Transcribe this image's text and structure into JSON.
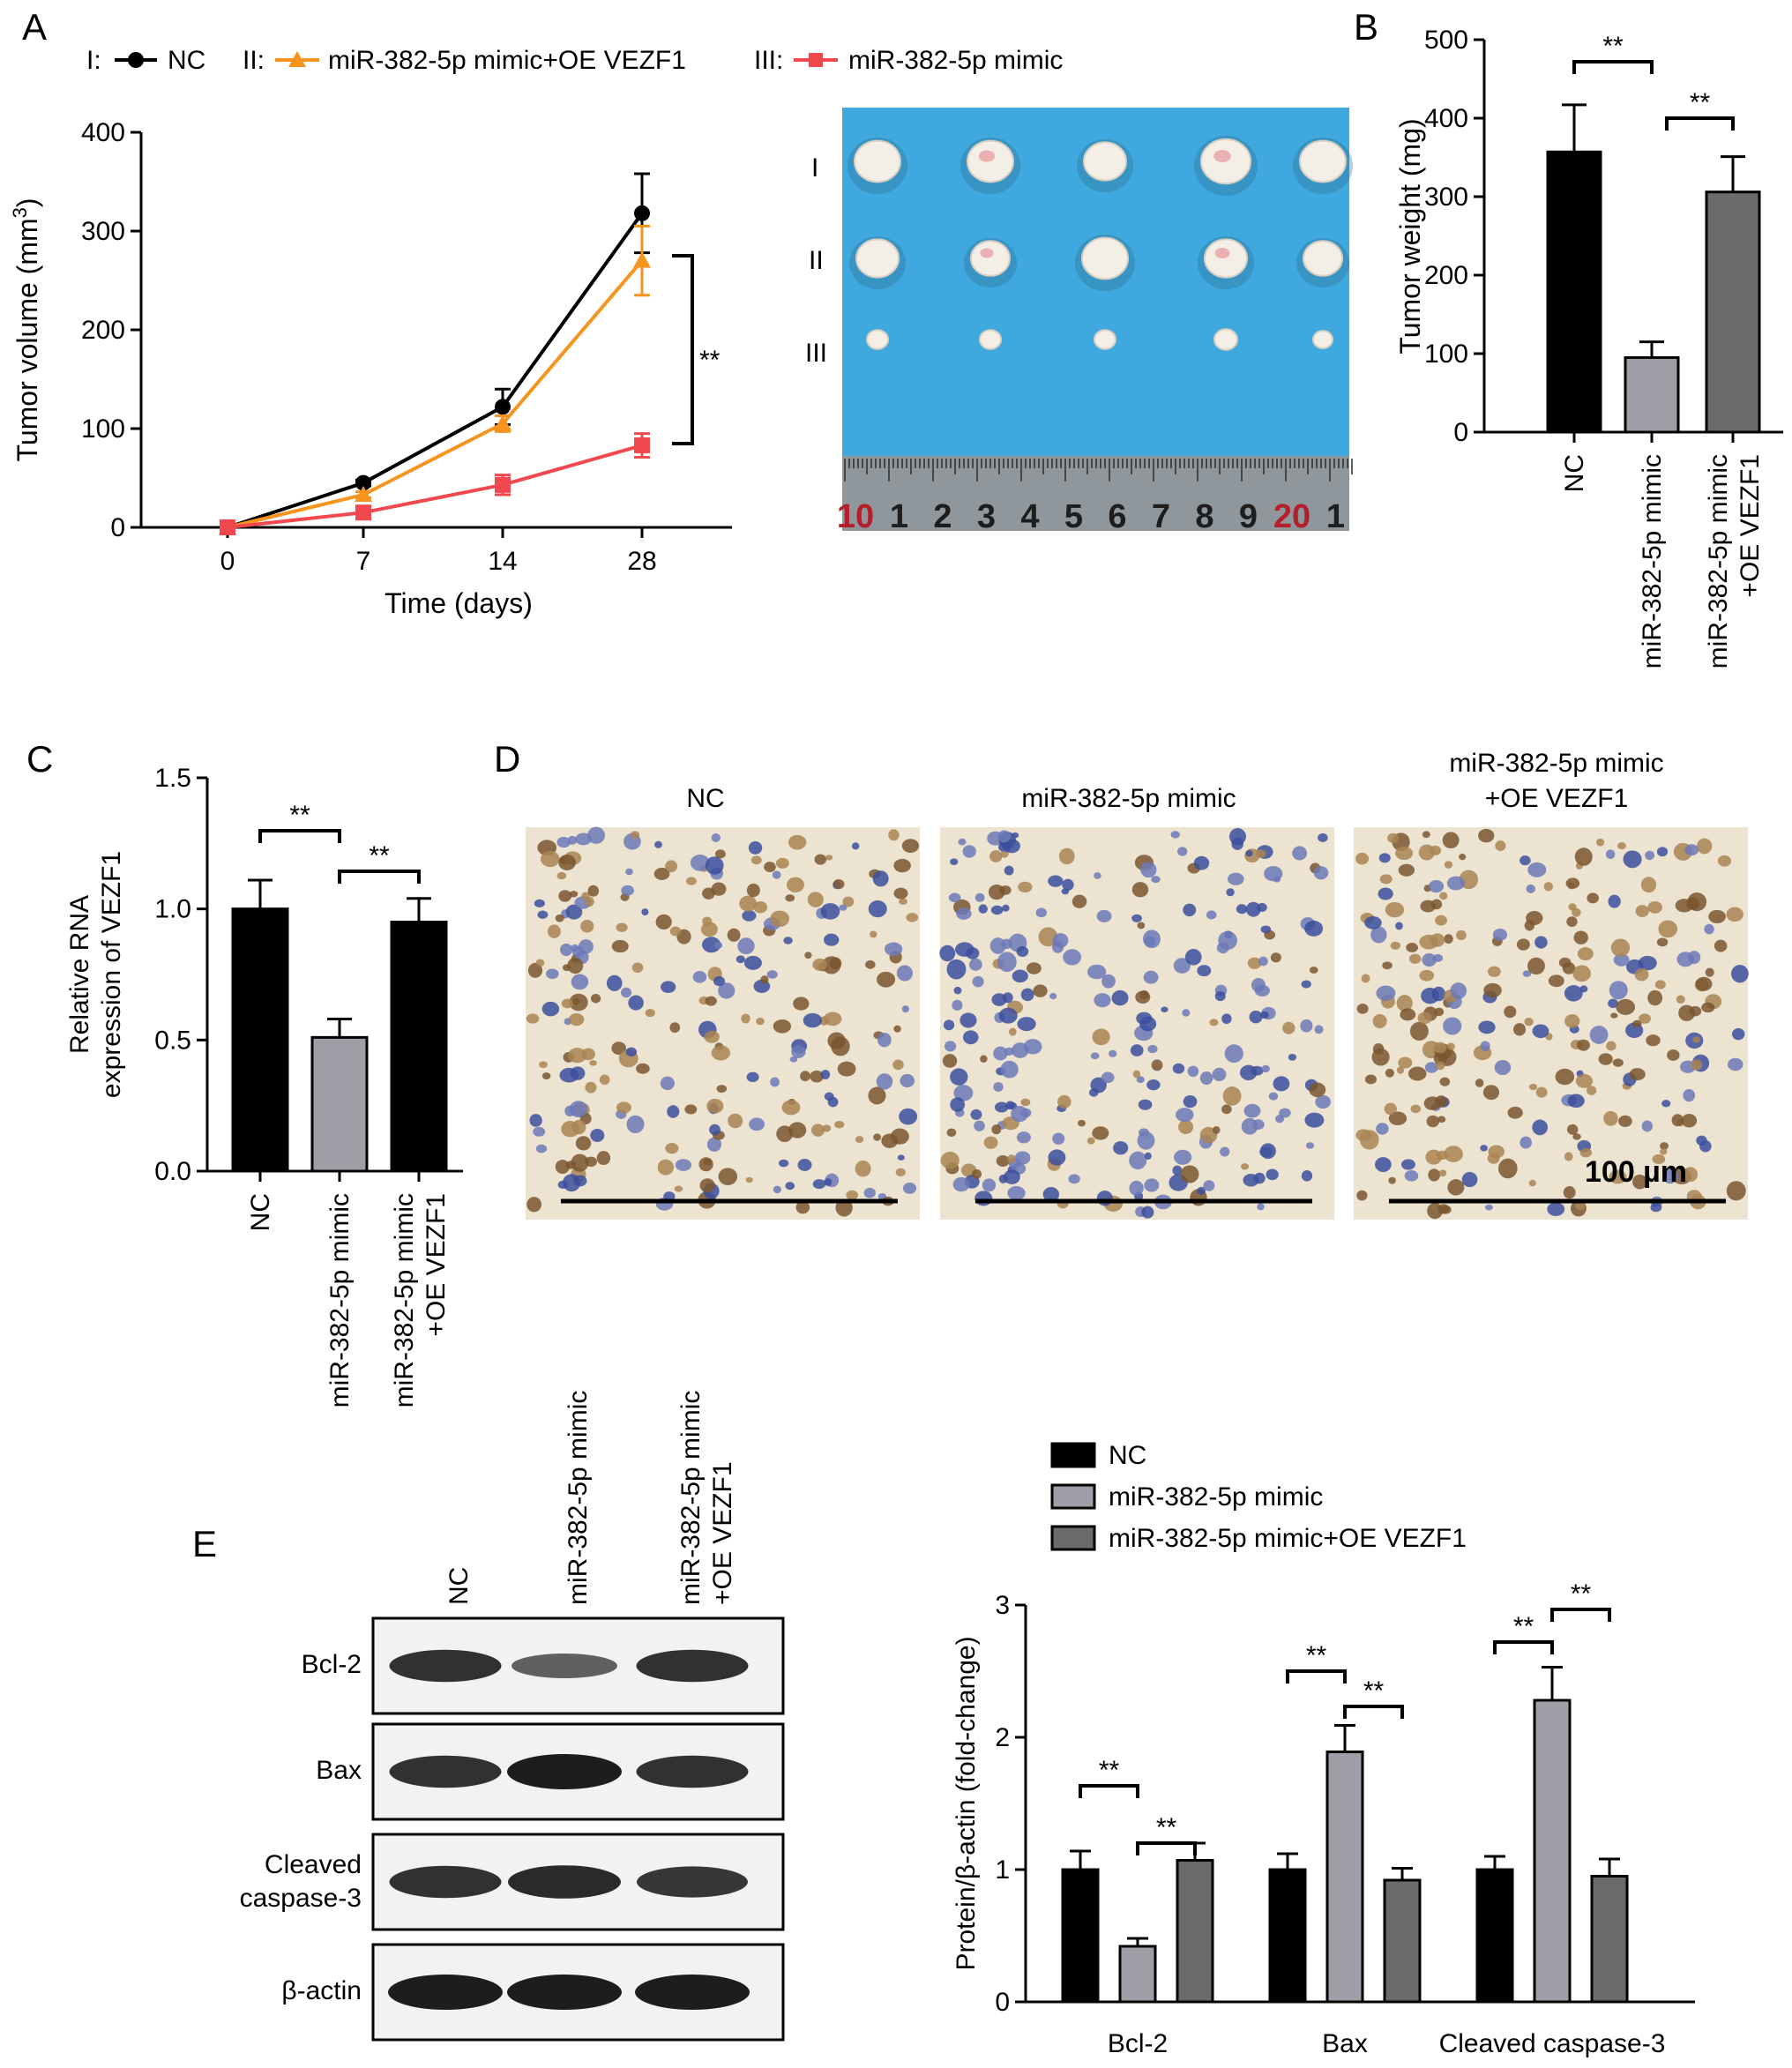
{
  "panels": {
    "A": {
      "letter": "A",
      "legend": [
        {
          "roman": "I:",
          "label": "NC",
          "color": "#000000",
          "marker": "circle"
        },
        {
          "roman": "II:",
          "label": "miR-382-5p mimic+OE VEZF1",
          "color": "#f7941d",
          "marker": "triangle"
        },
        {
          "roman": "III:",
          "label": "miR-382-5p mimic",
          "color": "#f0484e",
          "marker": "square"
        }
      ],
      "sig_label": "**",
      "photo_rows": [
        "I",
        "II",
        "III"
      ],
      "ruler_labels": [
        "10",
        "1",
        "2",
        "3",
        "4",
        "5",
        "6",
        "7",
        "8",
        "9",
        "20",
        "1"
      ]
    },
    "B": {
      "letter": "B"
    },
    "C": {
      "letter": "C"
    },
    "D": {
      "letter": "D",
      "headers": [
        "NC",
        "miR-382-5p mimic",
        "miR-382-5p mimic\n+OE VEZF1"
      ],
      "scale_label": "100 µm",
      "colors": {
        "background": "#ece3d0",
        "brown_nucleus": "#7a5630",
        "blue_nucleus": "#3c4f9e"
      }
    },
    "E": {
      "letter": "E",
      "lanes": [
        "NC",
        "miR-382-5p mimic",
        "miR-382-5p mimic\n+OE VEZF1"
      ],
      "blots": [
        {
          "label": "Bcl-2",
          "intensities": [
            0.85,
            0.5,
            0.85
          ]
        },
        {
          "label": "Bax",
          "intensities": [
            0.85,
            1.0,
            0.85
          ]
        },
        {
          "label": "Cleaved\ncaspase-3",
          "intensities": [
            0.85,
            0.9,
            0.8
          ]
        },
        {
          "label": "β-actin",
          "intensities": [
            1.0,
            1.0,
            1.0
          ]
        }
      ]
    }
  },
  "chart_data": [
    {
      "id": "A",
      "type": "line",
      "xlabel": "Time (days)",
      "ylabel": "Tumor volume (mm3)",
      "x": [
        0,
        7,
        14,
        28
      ],
      "xticks": [
        "0",
        "7",
        "14",
        "28"
      ],
      "ylim": [
        0,
        400
      ],
      "yticks": [
        0,
        100,
        200,
        300,
        400
      ],
      "series": [
        {
          "name": "NC",
          "color": "#000000",
          "marker": "circle",
          "values": [
            0,
            45,
            122,
            318
          ],
          "errors": [
            0,
            3,
            18,
            40
          ]
        },
        {
          "name": "miR-382-5p mimic+OE VEZF1",
          "color": "#f7941d",
          "marker": "triangle",
          "values": [
            0,
            33,
            105,
            270
          ],
          "errors": [
            0,
            3,
            8,
            35
          ]
        },
        {
          "name": "miR-382-5p mimic",
          "color": "#f0484e",
          "marker": "square",
          "values": [
            0,
            15,
            43,
            83
          ],
          "errors": [
            0,
            4,
            10,
            12
          ]
        }
      ],
      "annotations": [
        "**"
      ]
    },
    {
      "id": "B",
      "type": "bar",
      "ylabel": "Tumor weight (mg)",
      "categories": [
        "NC",
        "miR-382-5p mimic",
        "miR-382-5p mimic\n+OE VEZF1"
      ],
      "values": [
        357,
        95,
        306
      ],
      "errors": [
        60,
        20,
        45
      ],
      "colors": [
        "#000000",
        "#9e9fa6",
        "#6b6b6b"
      ],
      "ylim": [
        0,
        500
      ],
      "yticks": [
        0,
        100,
        200,
        300,
        400,
        500
      ],
      "annotations": [
        "**",
        "**"
      ]
    },
    {
      "id": "C",
      "type": "bar",
      "ylabel": "Relative RNA\nexpression of VEZF1",
      "categories": [
        "NC",
        "miR-382-5p mimic",
        "miR-382-5p mimic\n+OE VEZF1"
      ],
      "values": [
        1.0,
        0.51,
        0.95
      ],
      "errors": [
        0.11,
        0.07,
        0.09
      ],
      "colors": [
        "#000000",
        "#9e9fa6",
        "#000000"
      ],
      "ylim": [
        0,
        1.5
      ],
      "yticks": [
        "0.0",
        "0.5",
        "1.0",
        "1.5"
      ],
      "annotations": [
        "**",
        "**"
      ]
    },
    {
      "id": "E",
      "type": "bar",
      "ylabel": "Protein/β-actin (fold-change)",
      "categories": [
        "Bcl-2",
        "Bax",
        "Cleaved caspase-3"
      ],
      "series": [
        {
          "name": "NC",
          "color": "#000000",
          "values": [
            1.0,
            1.0,
            1.0
          ],
          "errors": [
            0.14,
            0.12,
            0.1
          ]
        },
        {
          "name": "miR-382-5p mimic",
          "color": "#9e9fa6",
          "values": [
            0.42,
            1.89,
            2.28
          ],
          "errors": [
            0.06,
            0.2,
            0.25
          ]
        },
        {
          "name": "miR-382-5p mimic+OE VEZF1",
          "color": "#6b6b6b",
          "values": [
            1.07,
            0.92,
            0.95
          ],
          "errors": [
            0.13,
            0.09,
            0.13
          ]
        }
      ],
      "ylim": [
        0,
        3
      ],
      "yticks": [
        0,
        1,
        2,
        3
      ],
      "legend_position": "top",
      "annotations": [
        "**"
      ]
    }
  ]
}
